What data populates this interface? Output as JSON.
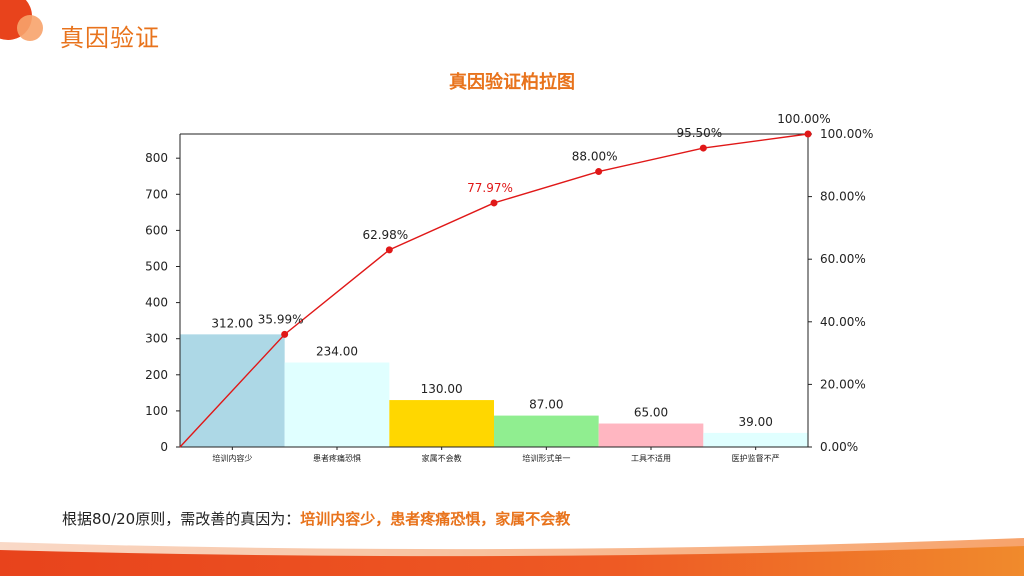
{
  "header": {
    "title": "真因验证"
  },
  "colors": {
    "accent": "#e8731c",
    "line": "#e01818",
    "bar_colors": [
      "#add8e6",
      "#e0ffff",
      "#ffd700",
      "#90ee90",
      "#ffb6c1",
      "#e0ffff"
    ],
    "highlight_label": "#e01818"
  },
  "chart_data": {
    "type": "bar",
    "title": "真因验证柏拉图",
    "categories": [
      "培训内容少",
      "患者疼痛恐惧",
      "家属不会教",
      "培训形式单一",
      "工具不适用",
      "医护监督不严"
    ],
    "values": [
      312,
      234,
      130,
      87,
      65,
      39
    ],
    "value_labels": [
      "312.00",
      "234.00",
      "130.00",
      "87.00",
      "65.00",
      "39.00"
    ],
    "cumulative_percent": [
      0,
      35.99,
      62.98,
      77.97,
      88.0,
      95.5,
      100.0
    ],
    "cumulative_labels": [
      "",
      "35.99%",
      "62.98%",
      "77.97%",
      "88.00%",
      "95.50%",
      "100.00%"
    ],
    "highlighted_label_index": 3,
    "y_left": {
      "ticks": [
        0,
        100,
        200,
        300,
        400,
        500,
        600,
        700,
        800
      ],
      "ylim": [
        0,
        867
      ]
    },
    "y_right": {
      "ticks": [
        "0.00%",
        "20.00%",
        "40.00%",
        "60.00%",
        "80.00%",
        "100.00%"
      ],
      "ylim": [
        0,
        100
      ]
    },
    "grid": false,
    "legend": "none"
  },
  "conclusion": {
    "prefix": "根据80/20原则，需改善的真因为：",
    "highlight": "培训内容少，患者疼痛恐惧，家属不会教"
  }
}
